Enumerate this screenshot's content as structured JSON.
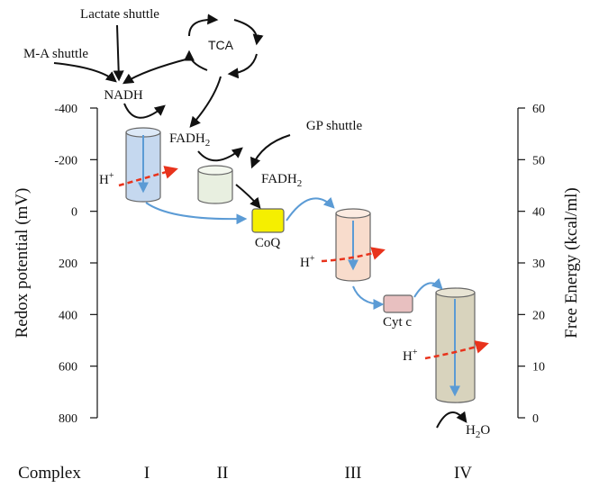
{
  "left_axis": {
    "label": "Redox potential (mV)",
    "ticks": [
      -400,
      -200,
      0,
      200,
      400,
      600,
      800
    ]
  },
  "right_axis": {
    "label": "Free Energy (kcal/ml)",
    "ticks": [
      60,
      50,
      40,
      30,
      20,
      10,
      0
    ]
  },
  "labels": {
    "lactate": "Lactate shuttle",
    "ma": "M-A shuttle",
    "nadh": "NADH",
    "tca": "TCA",
    "gp": "GP shuttle",
    "fadh_1": {
      "main": "FADH",
      "sub": "2"
    },
    "fadh_2": {
      "main": "FADH",
      "sub": "2"
    },
    "coq": "CoQ",
    "cytc": "Cyt c",
    "water": {
      "a": "H",
      "sub": "2",
      "b": "O"
    },
    "h_1": {
      "main": "H",
      "sup": "+"
    },
    "h_3": {
      "main": "H",
      "sup": "+"
    },
    "h_4": {
      "main": "H",
      "sup": "+"
    }
  },
  "complex": {
    "title": "Complex",
    "names": [
      "I",
      "II",
      "III",
      "IV"
    ]
  }
}
